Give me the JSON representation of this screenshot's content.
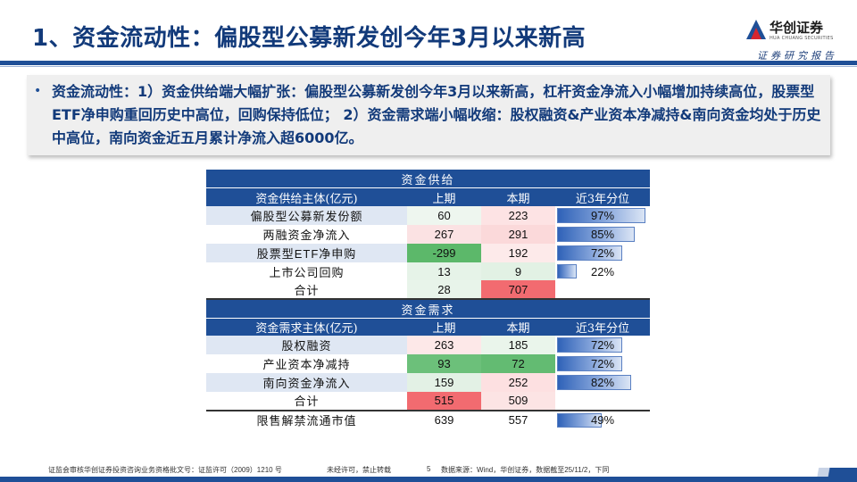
{
  "header": {
    "title": "1、资金流动性：偏股型公募新发创今年3月以来新高",
    "brand_cn": "华创证券",
    "brand_en": "HUA CHUANG SECURITIES",
    "subtitle": "证券研究报告",
    "colors": {
      "primary": "#1f4f97",
      "title": "#123a7a",
      "logo_red": "#d7262f"
    }
  },
  "bullet": {
    "text": "资金流动性：1）资金供给端大幅扩张：偏股型公募新发创今年3月以来新高，杠杆资金净流入小幅增加持续高位，股票型ETF净申购重回历史中高位，回购保持低位； 2）资金需求端小幅收缩：股权融资&产业资本净减持&南向资金均处于历史中高位，南向资金近五月累计净流入超6000亿。"
  },
  "supply": {
    "section": "资金供给",
    "headers": [
      "资金供给主体(亿元)",
      "上期",
      "本期",
      "近3年分位"
    ],
    "rows": [
      {
        "label": "偏股型公募新发份额",
        "prev": "60",
        "curr": "223",
        "pct": "97%",
        "pct_value": 97,
        "prev_color": "#eef6ef",
        "curr_color": "#fde3e4"
      },
      {
        "label": "两融资金净流入",
        "prev": "267",
        "curr": "291",
        "pct": "85%",
        "pct_value": 85,
        "prev_color": "#fbe2e3",
        "curr_color": "#fbd9da"
      },
      {
        "label": "股票型ETF净申购",
        "prev": "-299",
        "curr": "192",
        "pct": "72%",
        "pct_value": 72,
        "prev_color": "#5cb86a",
        "curr_color": "#fdeaea"
      },
      {
        "label": "上市公司回购",
        "prev": "13",
        "curr": "9",
        "pct": "22%",
        "pct_value": 22,
        "prev_color": "#e6f3e8",
        "curr_color": "#e2f1e4"
      }
    ],
    "total": {
      "label": "合计",
      "prev": "28",
      "curr": "707",
      "prev_color": "#e8f4ea",
      "curr_color": "#f26b70"
    }
  },
  "demand": {
    "section": "资金需求",
    "headers": [
      "资金需求主体(亿元)",
      "上期",
      "本期",
      "近3年分位"
    ],
    "rows": [
      {
        "label": "股权融资",
        "prev": "263",
        "curr": "185",
        "pct": "72%",
        "pct_value": 72,
        "prev_color": "#fde8e8",
        "curr_color": "#eaf5eb"
      },
      {
        "label": "产业资本净减持",
        "prev": "93",
        "curr": "72",
        "pct": "72%",
        "pct_value": 72,
        "prev_color": "#6cc07a",
        "curr_color": "#63bb72"
      },
      {
        "label": "南向资金净流入",
        "prev": "159",
        "curr": "252",
        "pct": "82%",
        "pct_value": 82,
        "prev_color": "#e3f1e5",
        "curr_color": "#fde0e1"
      }
    ],
    "total": {
      "label": "合计",
      "prev": "515",
      "curr": "509",
      "prev_color": "#f26b70",
      "curr_color": "#fce4e4"
    },
    "extra": {
      "label": "限售解禁流通市值",
      "prev": "639",
      "curr": "557",
      "pct": "49%",
      "pct_value": 49
    }
  },
  "footer": {
    "license": "证监会审核华创证券投资咨询业务资格批文号：证监许可（2009）1210 号",
    "notice": "未经许可，禁止转载",
    "page": "5",
    "source": "数据来源：Wind，华创证券，数据截至25/11/2，下同"
  }
}
